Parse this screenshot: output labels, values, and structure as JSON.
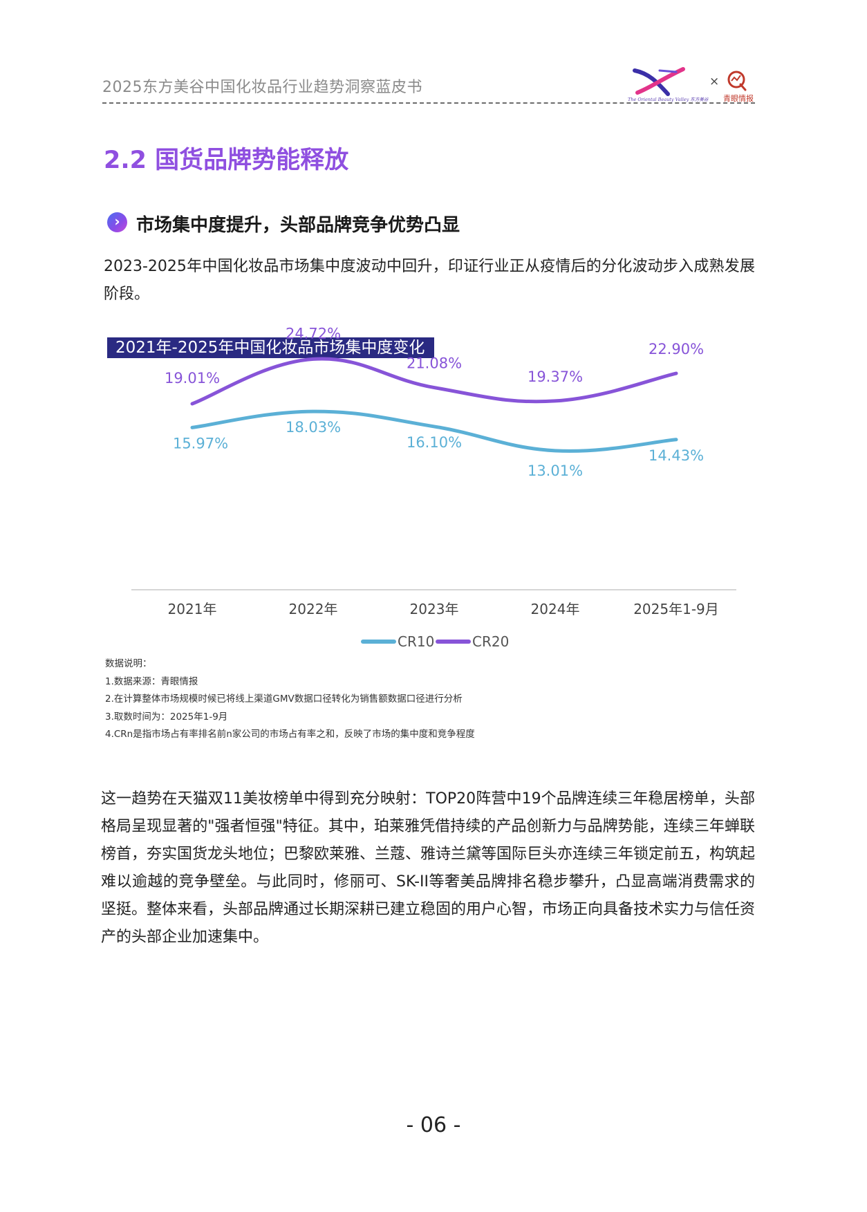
{
  "header": {
    "title": "2025东方美谷中国化妆品行业趋势洞察蓝皮书",
    "logo_tagline": "The Oriental Beauty Valley 东方美谷",
    "times_sign": "×",
    "partner_logo_text": "青眼情报"
  },
  "section": {
    "title": "2.2 国货品牌势能释放",
    "sub_heading": "市场集中度提升，头部品牌竞争优势凸显",
    "sub_icon_glyph": "›",
    "intro": "2023-2025年中国化妆品市场集中度波动中回升，印证行业正从疫情后的分化波动步入成熟发展阶段。"
  },
  "chart_data": {
    "type": "line",
    "title": "2021年-2025年中国化妆品市场集中度变化",
    "categories": [
      "2021年",
      "2022年",
      "2023年",
      "2024年",
      "2025年1-9月"
    ],
    "series": [
      {
        "name": "CR10",
        "color": "#5bb0d6",
        "values": [
          15.97,
          18.03,
          16.1,
          13.01,
          14.43
        ],
        "labels": [
          "15.97%",
          "18.03%",
          "16.10%",
          "13.01%",
          "14.43%"
        ]
      },
      {
        "name": "CR20",
        "color": "#8754d8",
        "values": [
          19.01,
          24.72,
          21.08,
          19.37,
          22.9
        ],
        "labels": [
          "19.01%",
          "24.72%",
          "21.08%",
          "19.37%",
          "22.90%"
        ]
      }
    ],
    "legend_position": "bottom",
    "grid": false,
    "smooth": true,
    "ylim": [
      0,
      27
    ]
  },
  "notes": {
    "heading": "数据说明：",
    "items": [
      "1.数据来源：青眼情报",
      "2.在计算整体市场规模时候已将线上渠道GMV数据口径转化为销售额数据口径进行分析",
      "3.取数时间为：2025年1-9月",
      "4.CRn是指市场占有率排名前n家公司的市场占有率之和，反映了市场的集中度和竞争程度"
    ]
  },
  "body_paragraph": "这一趋势在天猫双11美妆榜单中得到充分映射：TOP20阵营中19个品牌连续三年稳居榜单，头部格局呈现显著的\"强者恒强\"特征。其中，珀莱雅凭借持续的产品创新力与品牌势能，连续三年蝉联榜首，夯实国货龙头地位；巴黎欧莱雅、兰蔻、雅诗兰黛等国际巨头亦连续三年锁定前五，构筑起难以逾越的竞争壁垒。与此同时，修丽可、SK-II等奢美品牌排名稳步攀升，凸显高端消费需求的坚挺。整体来看，头部品牌通过长期深耕已建立稳固的用户心智，市场正向具备技术实力与信任资产的头部企业加速集中。",
  "footer": {
    "page_number": "- 06 -"
  }
}
